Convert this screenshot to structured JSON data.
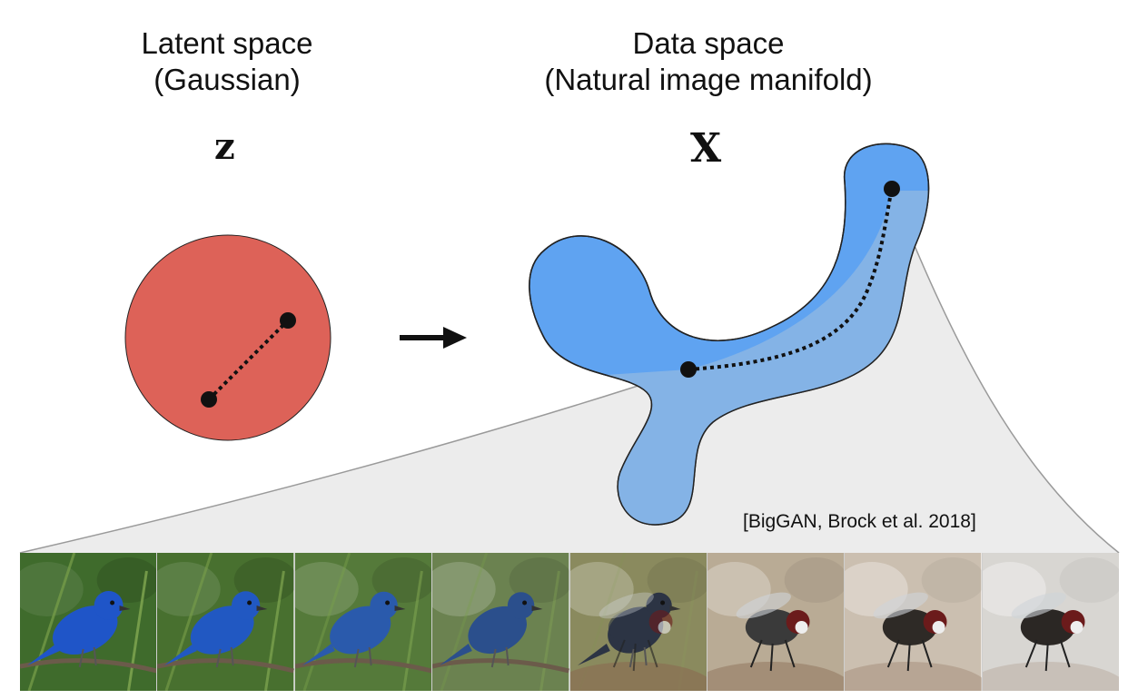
{
  "latent": {
    "title_line1": "Latent space",
    "title_line2": "(Gaussian)",
    "variable": "z"
  },
  "data": {
    "title_line1": "Data space",
    "title_line2": "(Natural image manifold)",
    "variable": "X"
  },
  "citation": "[BigGAN, Brock et al. 2018]",
  "colors": {
    "latent_fill": "#dd6258",
    "manifold_top": "#5fa3f1",
    "manifold_bottom": "#7fb0e6",
    "fan": "#ececec"
  },
  "strip": [
    {
      "subject": "bird",
      "bg": "#3f6b2c",
      "body": "#1f55c8",
      "blend": 0.0
    },
    {
      "subject": "bird",
      "bg": "#48702f",
      "body": "#2158c2",
      "blend": 0.1
    },
    {
      "subject": "bird",
      "bg": "#557a3a",
      "body": "#2a5aac",
      "blend": 0.25
    },
    {
      "subject": "bird",
      "bg": "#6b8250",
      "body": "#2b4f8c",
      "blend": 0.4
    },
    {
      "subject": "hybrid",
      "bg": "#8a8a5e",
      "body": "#2c3444",
      "blend": 0.6
    },
    {
      "subject": "fly",
      "bg": "#b9ab95",
      "body": "#3a3a3a",
      "blend": 0.75
    },
    {
      "subject": "fly",
      "bg": "#cbbfb0",
      "body": "#2e2a26",
      "blend": 0.9
    },
    {
      "subject": "fly",
      "bg": "#d8d6d2",
      "body": "#2b2724",
      "blend": 1.0
    }
  ]
}
